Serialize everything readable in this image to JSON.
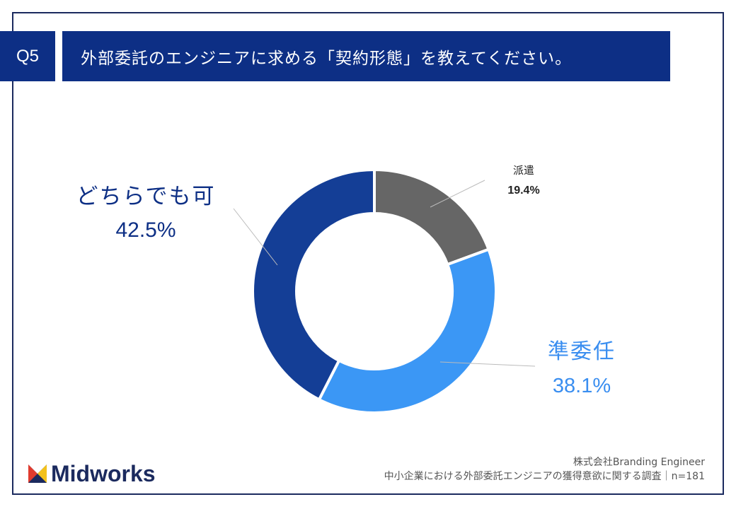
{
  "header": {
    "question_no": "Q5",
    "question_text": "外部委託のエンジニアに求める「契約形態」を教えてください。"
  },
  "chart_data": {
    "type": "pie",
    "title": "",
    "categories": [
      "派遣",
      "準委任",
      "どちらでも可"
    ],
    "values": [
      19.4,
      38.1,
      42.5
    ],
    "value_labels": [
      "19.4%",
      "38.1%",
      "42.5%"
    ],
    "colors": [
      "#666666",
      "#3b97f5",
      "#143e96"
    ],
    "donut": true,
    "legend": "none"
  },
  "logo": {
    "text": "Midworks",
    "colors": [
      "#1b2a5e",
      "#e03b2e",
      "#f3c11b"
    ]
  },
  "footer": {
    "line1": "株式会社Branding Engineer",
    "line2": "中小企業における外部委託エンジニアの獲得意欲に関する調査｜n=181"
  }
}
